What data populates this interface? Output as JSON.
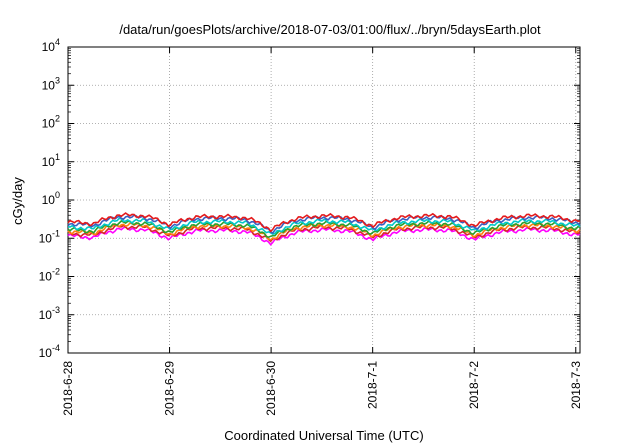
{
  "chart_data": {
    "type": "line",
    "title": "/data/run/goesPlots/archive/2018-07-03/01:00/flux/../bryn/5daysEarth.plot",
    "xlabel": "Coordinated Universal Time (UTC)",
    "ylabel": "cGy/day",
    "yscale": "log",
    "ylim": [
      0.0001,
      10000
    ],
    "xlim": [
      "2018-06-28",
      "2018-07-03 01:00"
    ],
    "grid": true,
    "x_ticks": [
      "2018-6-28",
      "2018-6-29",
      "2018-6-30",
      "2018-7-1",
      "2018-7-2",
      "2018-7-3"
    ],
    "y_ticks": [
      {
        "base": "10",
        "exp": "-4",
        "value": 0.0001
      },
      {
        "base": "10",
        "exp": "-3",
        "value": 0.001
      },
      {
        "base": "10",
        "exp": "-2",
        "value": 0.01
      },
      {
        "base": "10",
        "exp": "-1",
        "value": 0.1
      },
      {
        "base": "10",
        "exp": "0",
        "value": 1
      },
      {
        "base": "10",
        "exp": "1",
        "value": 10
      },
      {
        "base": "10",
        "exp": "2",
        "value": 100
      },
      {
        "base": "10",
        "exp": "3",
        "value": 1000
      },
      {
        "base": "10",
        "exp": "4",
        "value": 10000
      }
    ],
    "series": [
      {
        "color": "#e41a1c",
        "baseline": 0.3
      },
      {
        "color": "#3b5fc0",
        "baseline": 0.27
      },
      {
        "color": "#00c8c8",
        "baseline": 0.22
      },
      {
        "color": "#2ca02c",
        "baseline": 0.19
      },
      {
        "color": "#ff7f0e",
        "baseline": 0.17
      },
      {
        "color": "#d62728",
        "baseline": 0.15
      },
      {
        "color": "#ff00ff",
        "baseline": 0.13
      }
    ],
    "x_samples": [
      "2018-06-28 00:00",
      "2018-06-28 06:00",
      "2018-06-28 12:00",
      "2018-06-28 18:00",
      "2018-06-29 00:00",
      "2018-06-29 06:00",
      "2018-06-29 12:00",
      "2018-06-29 18:00",
      "2018-06-30 00:00",
      "2018-06-30 06:00",
      "2018-06-30 12:00",
      "2018-06-30 18:00",
      "2018-07-01 00:00",
      "2018-07-01 06:00",
      "2018-07-01 12:00",
      "2018-07-01 18:00",
      "2018-07-02 00:00",
      "2018-07-02 06:00",
      "2018-07-02 12:00",
      "2018-07-02 18:00",
      "2018-07-03 00:00"
    ],
    "relative_profile": [
      0.9,
      0.8,
      1.35,
      1.3,
      0.75,
      1.2,
      1.25,
      1.15,
      0.55,
      1.1,
      1.3,
      1.2,
      0.7,
      1.15,
      1.3,
      1.25,
      0.7,
      1.1,
      1.3,
      1.25,
      0.95
    ]
  }
}
